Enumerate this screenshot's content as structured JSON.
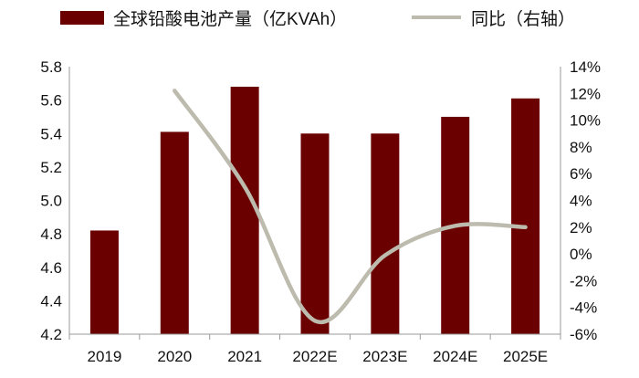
{
  "chart_data": {
    "type": "bar+line",
    "categories": [
      "2019",
      "2020",
      "2021",
      "2022E",
      "2023E",
      "2024E",
      "2025E"
    ],
    "series": [
      {
        "name": "全球铅酸电池产量（亿KVAh）",
        "type": "bar",
        "axis": "left",
        "color": "#6b0000",
        "values": [
          4.82,
          5.41,
          5.68,
          5.4,
          5.4,
          5.5,
          5.61
        ]
      },
      {
        "name": "同比（右轴）",
        "type": "line",
        "axis": "right",
        "color": "#bdbbae",
        "values": [
          null,
          12.2,
          5.0,
          -5.0,
          -0.1,
          2.1,
          2.0
        ]
      }
    ],
    "left_axis": {
      "ylim": [
        4.2,
        5.8
      ],
      "ticks": [
        4.2,
        4.4,
        4.6,
        4.8,
        5.0,
        5.2,
        5.4,
        5.6,
        5.8
      ],
      "tick_labels": [
        "4.2",
        "4.4",
        "4.6",
        "4.8",
        "5.0",
        "5.2",
        "5.4",
        "5.6",
        "5.8"
      ]
    },
    "right_axis": {
      "ylim": [
        -6,
        14
      ],
      "ticks": [
        -6,
        -4,
        -2,
        0,
        2,
        4,
        6,
        8,
        10,
        12,
        14
      ],
      "tick_labels": [
        "-6%",
        "-4%",
        "-2%",
        "0%",
        "2%",
        "4%",
        "6%",
        "8%",
        "10%",
        "12%",
        "14%"
      ]
    },
    "legend": [
      {
        "label": "全球铅酸电池产量（亿KVAh）",
        "kind": "bar",
        "color": "#6b0000"
      },
      {
        "label": "同比（右轴）",
        "kind": "line",
        "color": "#bdbbae"
      }
    ],
    "legend_position": "top",
    "grid": false
  }
}
